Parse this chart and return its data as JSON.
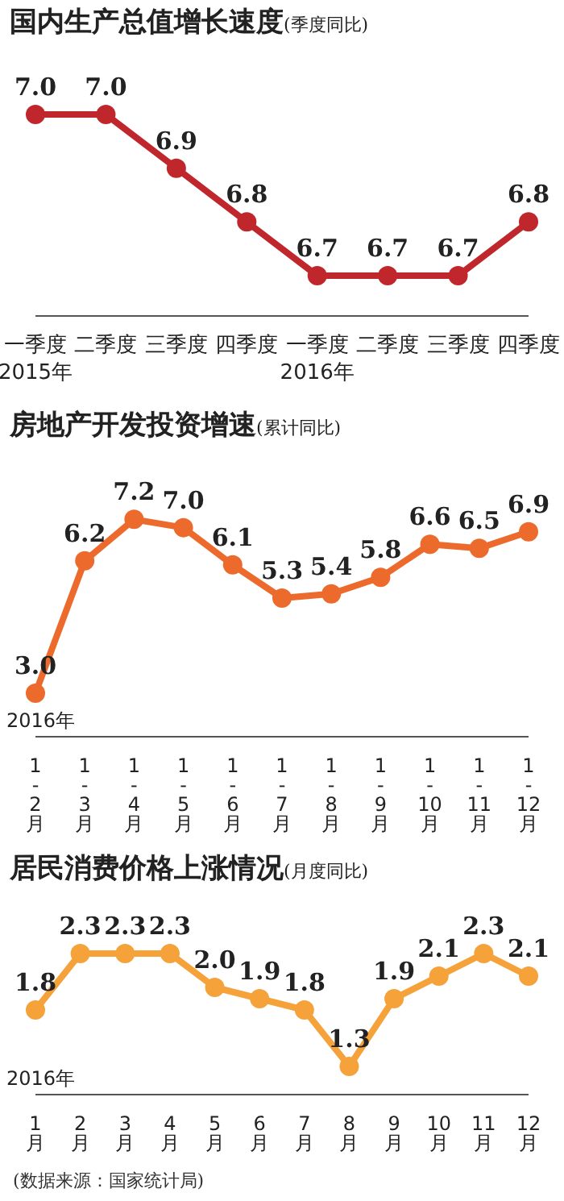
{
  "chart_data": [
    {
      "type": "line",
      "title": "国内生产总值增长速度",
      "subtitle": "(季度同比)",
      "categories": [
        "一季度\n2015年",
        "二季度",
        "三季度",
        "四季度",
        "一季度\n2016年",
        "二季度",
        "三季度",
        "四季度"
      ],
      "series": [
        {
          "color": "#c0272d",
          "values": [
            7.0,
            7.0,
            6.9,
            6.8,
            6.7,
            6.7,
            6.7,
            6.8
          ],
          "value_labels": [
            "7.0",
            "7.0",
            "6.9",
            "6.8",
            "6.7",
            "6.7",
            "6.7",
            "6.8"
          ]
        }
      ],
      "marker": "circle",
      "grid": false,
      "legend": false
    },
    {
      "type": "line",
      "title": "房地产开发投资增速",
      "subtitle": "(累计同比)",
      "categories": [
        "1-2月",
        "1-3月",
        "1-4月",
        "1-5月",
        "1-6月",
        "1-7月",
        "1-8月",
        "1-9月",
        "1-10月",
        "1-11月",
        "1-12月"
      ],
      "series": [
        {
          "color": "#ec6a2c",
          "values": [
            3.0,
            6.2,
            7.2,
            7.0,
            6.1,
            5.3,
            5.4,
            5.8,
            6.6,
            6.5,
            6.9
          ],
          "value_labels": [
            "3.0",
            "6.2",
            "7.2",
            "7.0",
            "6.1",
            "5.3",
            "5.4",
            "5.8",
            "6.6",
            "6.5",
            "6.9"
          ]
        }
      ],
      "marker": "circle",
      "grid": false,
      "legend": false,
      "annotations": [
        "2016年"
      ]
    },
    {
      "type": "line",
      "title": "居民消费价格上涨情况",
      "subtitle": "(月度同比)",
      "categories": [
        "1月",
        "2月",
        "3月",
        "4月",
        "5月",
        "6月",
        "7月",
        "8月",
        "9月",
        "10月",
        "11月",
        "12月"
      ],
      "series": [
        {
          "color": "#f5a23a",
          "values": [
            1.8,
            2.3,
            2.3,
            2.3,
            2.0,
            1.9,
            1.8,
            1.3,
            1.9,
            2.1,
            2.3,
            2.1
          ],
          "value_labels": [
            "1.8",
            "2.3",
            "2.3",
            "2.3",
            "2.0",
            "1.9",
            "1.8",
            "1.3",
            "1.9",
            "2.1",
            "2.3",
            "2.1"
          ]
        }
      ],
      "marker": "circle",
      "grid": false,
      "legend": false,
      "annotations": [
        "2016年",
        "(数据来源：国家统计局)"
      ]
    }
  ]
}
